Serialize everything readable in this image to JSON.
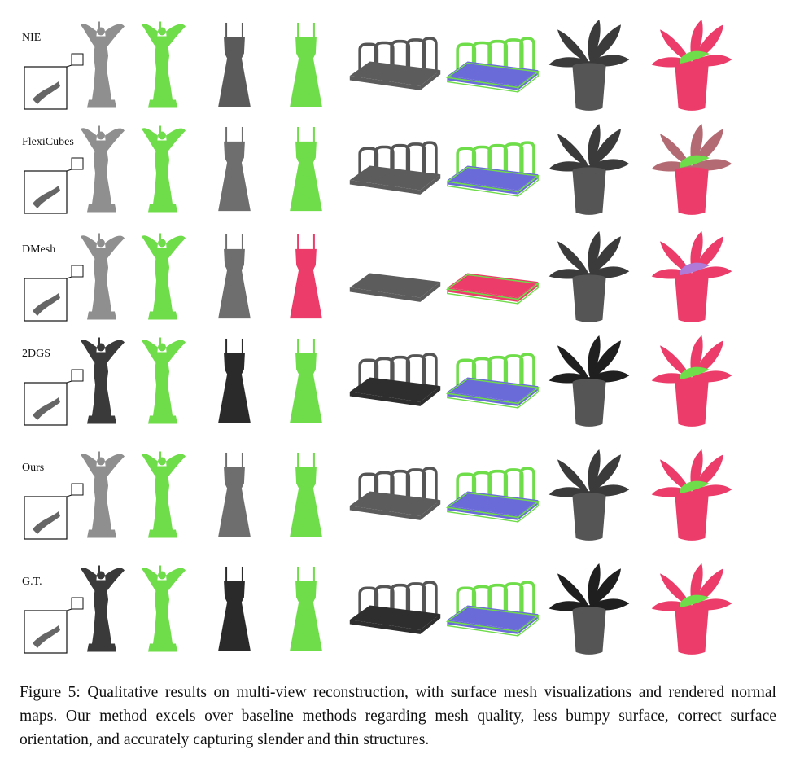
{
  "figure": {
    "row_labels": [
      "NIE",
      "FlexiCubes",
      "DMesh",
      "2DGS",
      "Ours",
      "G.T."
    ],
    "objects": [
      "statue",
      "dress",
      "rack",
      "plant"
    ],
    "render_modes": [
      "mesh",
      "normal"
    ],
    "colors": {
      "mesh_light": "#8f8f8f",
      "mesh_dark": "#3a3a3a",
      "normal_green": "#6fdc4a",
      "normal_pink": "#ec3c6a",
      "normal_blue": "#6a6ad8",
      "normal_purple": "#b07ad8"
    }
  },
  "caption": {
    "text": "Figure 5: Qualitative results on multi-view reconstruction, with surface mesh visualizations and rendered normal maps. Our method excels over baseline methods regarding mesh quality, less bumpy surface, correct surface orientation, and accurately capturing slender and thin structures."
  }
}
